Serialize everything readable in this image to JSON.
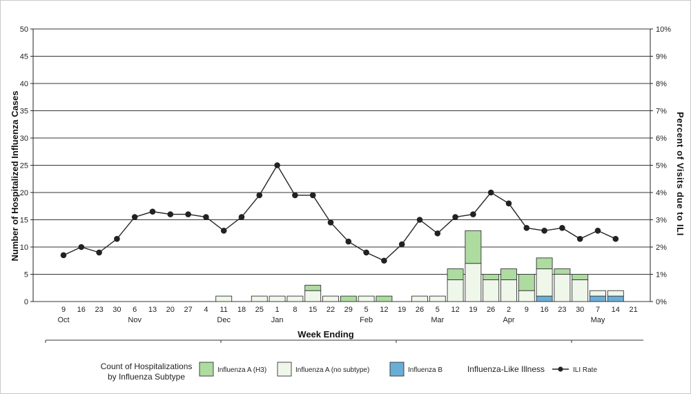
{
  "chart_data": {
    "type": "bar",
    "x_label": "Week Ending",
    "y_left_label": "Number of Hospitalized Influenza Cases",
    "y_right_label": "Percent of Visits due to ILI",
    "y_left_range": [
      0,
      50
    ],
    "y_left_ticks": [
      "0",
      "5",
      "10",
      "15",
      "20",
      "25",
      "30",
      "35",
      "40",
      "45",
      "50"
    ],
    "y_right_range": [
      0,
      10
    ],
    "y_right_ticks": [
      "0%",
      "1%",
      "2%",
      "3%",
      "4%",
      "5%",
      "6%",
      "7%",
      "8%",
      "9%",
      "10%"
    ],
    "grid": true,
    "week_labels": [
      "9",
      "16",
      "23",
      "30",
      "6",
      "13",
      "20",
      "27",
      "4",
      "11",
      "18",
      "25",
      "1",
      "8",
      "15",
      "22",
      "29",
      "5",
      "12",
      "19",
      "26",
      "5",
      "12",
      "19",
      "26",
      "2",
      "9",
      "16",
      "23",
      "30",
      "7",
      "14",
      "21"
    ],
    "month_labels": [
      {
        "label": "Oct",
        "week_index": 0
      },
      {
        "label": "Nov",
        "week_index": 4
      },
      {
        "label": "Dec",
        "week_index": 9
      },
      {
        "label": "Jan",
        "week_index": 12
      },
      {
        "label": "Feb",
        "week_index": 17
      },
      {
        "label": "Mar",
        "week_index": 21
      },
      {
        "label": "Apr",
        "week_index": 25
      },
      {
        "label": "May",
        "week_index": 30
      }
    ],
    "series": [
      {
        "name": "Influenza B",
        "kind": "bar",
        "color": "#6aaed6",
        "values": [
          0,
          0,
          0,
          0,
          0,
          0,
          0,
          0,
          0,
          0,
          0,
          0,
          0,
          0,
          0,
          0,
          0,
          0,
          0,
          0,
          0,
          0,
          0,
          0,
          0,
          0,
          0,
          1,
          0,
          0,
          1,
          1,
          0
        ]
      },
      {
        "name": "Influenza A (no subtype)",
        "kind": "bar",
        "color": "#eef7ea",
        "values": [
          0,
          0,
          0,
          0,
          0,
          0,
          0,
          0,
          0,
          1,
          0,
          1,
          1,
          1,
          2,
          1,
          0,
          1,
          0,
          0,
          1,
          1,
          4,
          7,
          4,
          4,
          2,
          5,
          5,
          4,
          1,
          1,
          0
        ]
      },
      {
        "name": "Influenza A (H3)",
        "kind": "bar",
        "color": "#addba0",
        "values": [
          0,
          0,
          0,
          0,
          0,
          0,
          0,
          0,
          0,
          0,
          0,
          0,
          0,
          0,
          1,
          0,
          1,
          0,
          1,
          0,
          0,
          0,
          2,
          6,
          1,
          2,
          3,
          2,
          1,
          1,
          0,
          0,
          0
        ]
      },
      {
        "name": "ILI Rate",
        "kind": "line",
        "axis": "right",
        "color": "#222222",
        "values": [
          1.7,
          2.0,
          1.8,
          2.3,
          3.1,
          3.3,
          3.2,
          3.2,
          3.1,
          2.6,
          3.1,
          3.9,
          5.0,
          3.9,
          3.9,
          2.9,
          2.2,
          1.8,
          1.5,
          2.1,
          3.0,
          2.5,
          3.1,
          3.2,
          4.0,
          3.6,
          2.7,
          2.6,
          2.7,
          2.3,
          2.6,
          2.3,
          null
        ]
      }
    ],
    "legend": {
      "placement": "bottom",
      "bar_group_title": [
        "Count of Hospitalizations",
        "by Influenza Subtype"
      ],
      "bar_items": [
        "Influenza A (H3)",
        "Influenza A (no subtype)",
        "Influenza B"
      ],
      "line_group_title": "Influenza-Like Illness",
      "line_items": [
        "ILI Rate"
      ]
    }
  }
}
